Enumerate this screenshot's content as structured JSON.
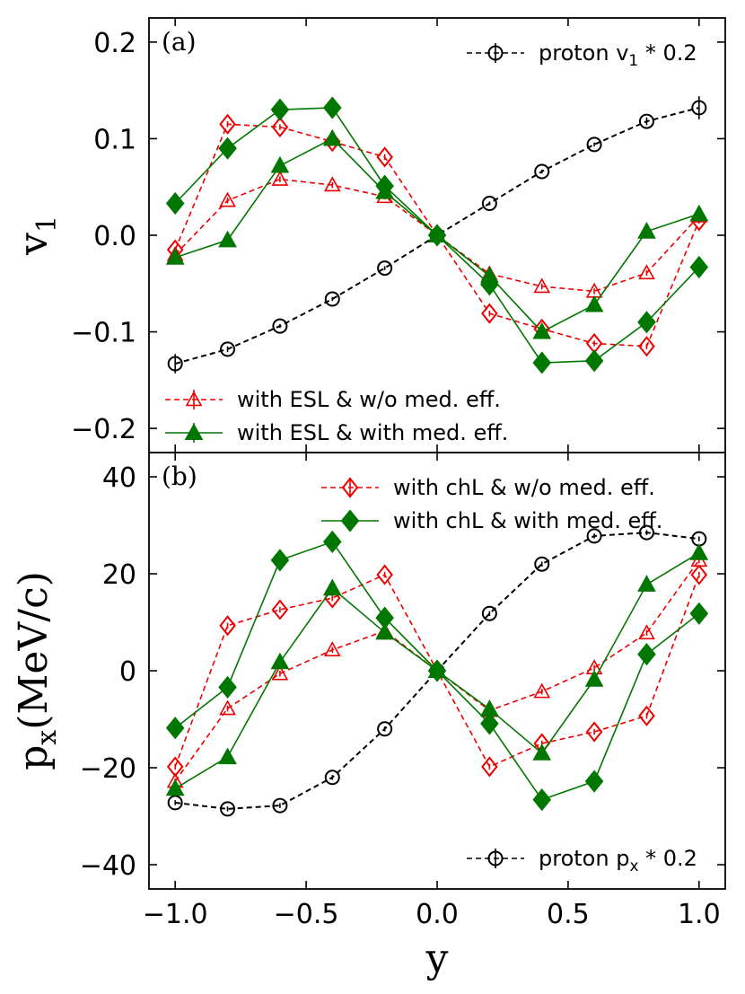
{
  "chart_data": [
    {
      "type": "line",
      "panel_label": "(a)",
      "ylabel": "v",
      "ylabel_sub": "1",
      "xlabel": "",
      "xlim": [
        -1.1,
        1.1
      ],
      "ylim": [
        -0.225,
        0.225
      ],
      "xticks": [
        -1.0,
        -0.5,
        0.0,
        0.5,
        1.0
      ],
      "xtick_labels": [
        "",
        "",
        "",
        "",
        ""
      ],
      "yticks": [
        -0.2,
        -0.1,
        0.0,
        0.1,
        0.2
      ],
      "ytick_labels": [
        "−0.2",
        "−0.1",
        "0.0",
        "0.1",
        "0.2"
      ],
      "x": [
        -1.0,
        -0.8,
        -0.6,
        -0.4,
        -0.2,
        0.0,
        0.2,
        0.4,
        0.6,
        0.8,
        1.0
      ],
      "series": [
        {
          "key": "proton",
          "name": "proton v",
          "name_sub": "1",
          "name_tail": " * 0.2",
          "color": "#000000",
          "marker": "circle-open",
          "dash": true,
          "values": [
            -0.133,
            -0.118,
            -0.094,
            -0.066,
            -0.034,
            0.0,
            0.033,
            0.066,
            0.094,
            0.118,
            0.132
          ],
          "errors": [
            0.01,
            0.003,
            0.002,
            0.002,
            0.002,
            0.002,
            0.002,
            0.002,
            0.002,
            0.004,
            0.012
          ]
        },
        {
          "key": "chl_wo",
          "name": "with chL & w/o med.  eff.",
          "color": "#ee0000",
          "marker": "diamond-open",
          "dash": true,
          "values": [
            -0.015,
            0.115,
            0.112,
            0.097,
            0.081,
            0.0,
            -0.081,
            -0.097,
            -0.112,
            -0.115,
            0.015
          ],
          "errors": [
            0.003,
            0.003,
            0.003,
            0.003,
            0.003,
            0.002,
            0.003,
            0.003,
            0.003,
            0.003,
            0.003
          ]
        },
        {
          "key": "esl_wo",
          "name": "with ESL & w/o med.  eff.",
          "color": "#ee0000",
          "marker": "triangle-open",
          "dash": true,
          "values": [
            -0.02,
            0.036,
            0.058,
            0.052,
            0.04,
            0.0,
            -0.04,
            -0.053,
            -0.058,
            -0.039,
            0.02
          ],
          "errors": [
            0.003,
            0.003,
            0.003,
            0.003,
            0.003,
            0.002,
            0.003,
            0.003,
            0.003,
            0.003,
            0.003
          ]
        },
        {
          "key": "esl_with",
          "name": "with ESL & with med.  eff.",
          "color": "#007700",
          "marker": "triangle-filled",
          "dash": false,
          "values": [
            -0.023,
            -0.005,
            0.072,
            0.1,
            0.045,
            0.0,
            -0.042,
            -0.1,
            -0.072,
            0.004,
            0.022
          ],
          "errors": [
            0.003,
            0.003,
            0.003,
            0.003,
            0.003,
            0.002,
            0.003,
            0.003,
            0.003,
            0.003,
            0.003
          ]
        },
        {
          "key": "chl_with",
          "name": "with chL & with med.  eff.",
          "color": "#007700",
          "marker": "diamond-filled",
          "dash": false,
          "values": [
            0.033,
            0.09,
            0.13,
            0.132,
            0.051,
            0.0,
            -0.051,
            -0.132,
            -0.13,
            -0.09,
            -0.033
          ],
          "errors": [
            0.003,
            0.003,
            0.003,
            0.003,
            0.003,
            0.002,
            0.003,
            0.003,
            0.003,
            0.003,
            0.003
          ]
        }
      ],
      "legends": [
        {
          "position": "top-right",
          "entries": [
            "proton"
          ]
        },
        {
          "position": "bottom-left",
          "entries": [
            "esl_wo",
            "esl_with"
          ]
        }
      ]
    },
    {
      "type": "line",
      "panel_label": "(b)",
      "ylabel": "p",
      "ylabel_sub": "x",
      "ylabel_tail": "(MeV/c)",
      "xlabel": "y",
      "xlim": [
        -1.1,
        1.1
      ],
      "ylim": [
        -45,
        45
      ],
      "xticks": [
        -1.0,
        -0.5,
        0.0,
        0.5,
        1.0
      ],
      "xtick_labels": [
        "−1.0",
        "−0.5",
        "0.0",
        "0.5",
        "1.0"
      ],
      "yticks": [
        -40,
        -20,
        0,
        20,
        40
      ],
      "ytick_labels": [
        "−40",
        "−20",
        "0",
        "20",
        "40"
      ],
      "x": [
        -1.0,
        -0.8,
        -0.6,
        -0.4,
        -0.2,
        0.0,
        0.2,
        0.4,
        0.6,
        0.8,
        1.0
      ],
      "series": [
        {
          "key": "proton",
          "name": "proton p",
          "name_sub": "x",
          "name_tail": " * 0.2",
          "color": "#000000",
          "marker": "circle-open",
          "dash": true,
          "values": [
            -27.2,
            -28.5,
            -27.8,
            -22.0,
            -12.0,
            0.0,
            11.8,
            22.0,
            27.8,
            28.5,
            27.2
          ],
          "errors": [
            0.5,
            0.5,
            0.5,
            0.5,
            0.5,
            0.5,
            0.5,
            0.5,
            0.5,
            0.5,
            0.5
          ]
        },
        {
          "key": "chl_wo",
          "name": "with chL & w/o med.  eff.",
          "color": "#ee0000",
          "marker": "diamond-open",
          "dash": true,
          "values": [
            -19.8,
            9.3,
            12.6,
            15.0,
            19.8,
            0.0,
            -19.8,
            -15.0,
            -12.6,
            -9.3,
            19.8
          ],
          "errors": [
            0.6,
            0.6,
            0.6,
            0.6,
            0.6,
            0.5,
            0.6,
            0.6,
            0.6,
            0.6,
            0.6
          ]
        },
        {
          "key": "esl_wo",
          "name": "with ESL & w/o med.  eff.",
          "color": "#ee0000",
          "marker": "triangle-open",
          "dash": true,
          "values": [
            -22.8,
            -7.8,
            -0.6,
            4.3,
            8.2,
            0.0,
            -8.2,
            -4.3,
            0.6,
            7.8,
            22.8
          ],
          "errors": [
            0.6,
            0.6,
            0.6,
            0.6,
            0.6,
            0.5,
            0.6,
            0.6,
            0.6,
            0.6,
            0.6
          ]
        },
        {
          "key": "esl_with",
          "name": "with ESL & with med.  eff.",
          "color": "#007700",
          "marker": "triangle-filled",
          "dash": false,
          "values": [
            -24.3,
            -17.8,
            1.8,
            17.0,
            7.9,
            0.0,
            -7.9,
            -17.0,
            -1.8,
            17.8,
            24.3
          ],
          "errors": [
            0.6,
            0.6,
            0.6,
            0.6,
            0.6,
            0.5,
            0.6,
            0.6,
            0.6,
            0.6,
            0.6
          ]
        },
        {
          "key": "chl_with",
          "name": "with chL & with med.  eff.",
          "color": "#007700",
          "marker": "diamond-filled",
          "dash": false,
          "values": [
            -11.8,
            -3.4,
            22.8,
            26.6,
            10.9,
            0.0,
            -10.9,
            -26.6,
            -22.8,
            3.4,
            11.8
          ],
          "errors": [
            0.6,
            0.6,
            0.6,
            0.6,
            0.6,
            0.5,
            0.6,
            0.6,
            0.6,
            0.6,
            0.6
          ]
        }
      ],
      "legends": [
        {
          "position": "top-right",
          "entries": [
            "chl_wo",
            "chl_with"
          ]
        },
        {
          "position": "bottom-right",
          "entries": [
            "proton"
          ]
        }
      ]
    }
  ]
}
